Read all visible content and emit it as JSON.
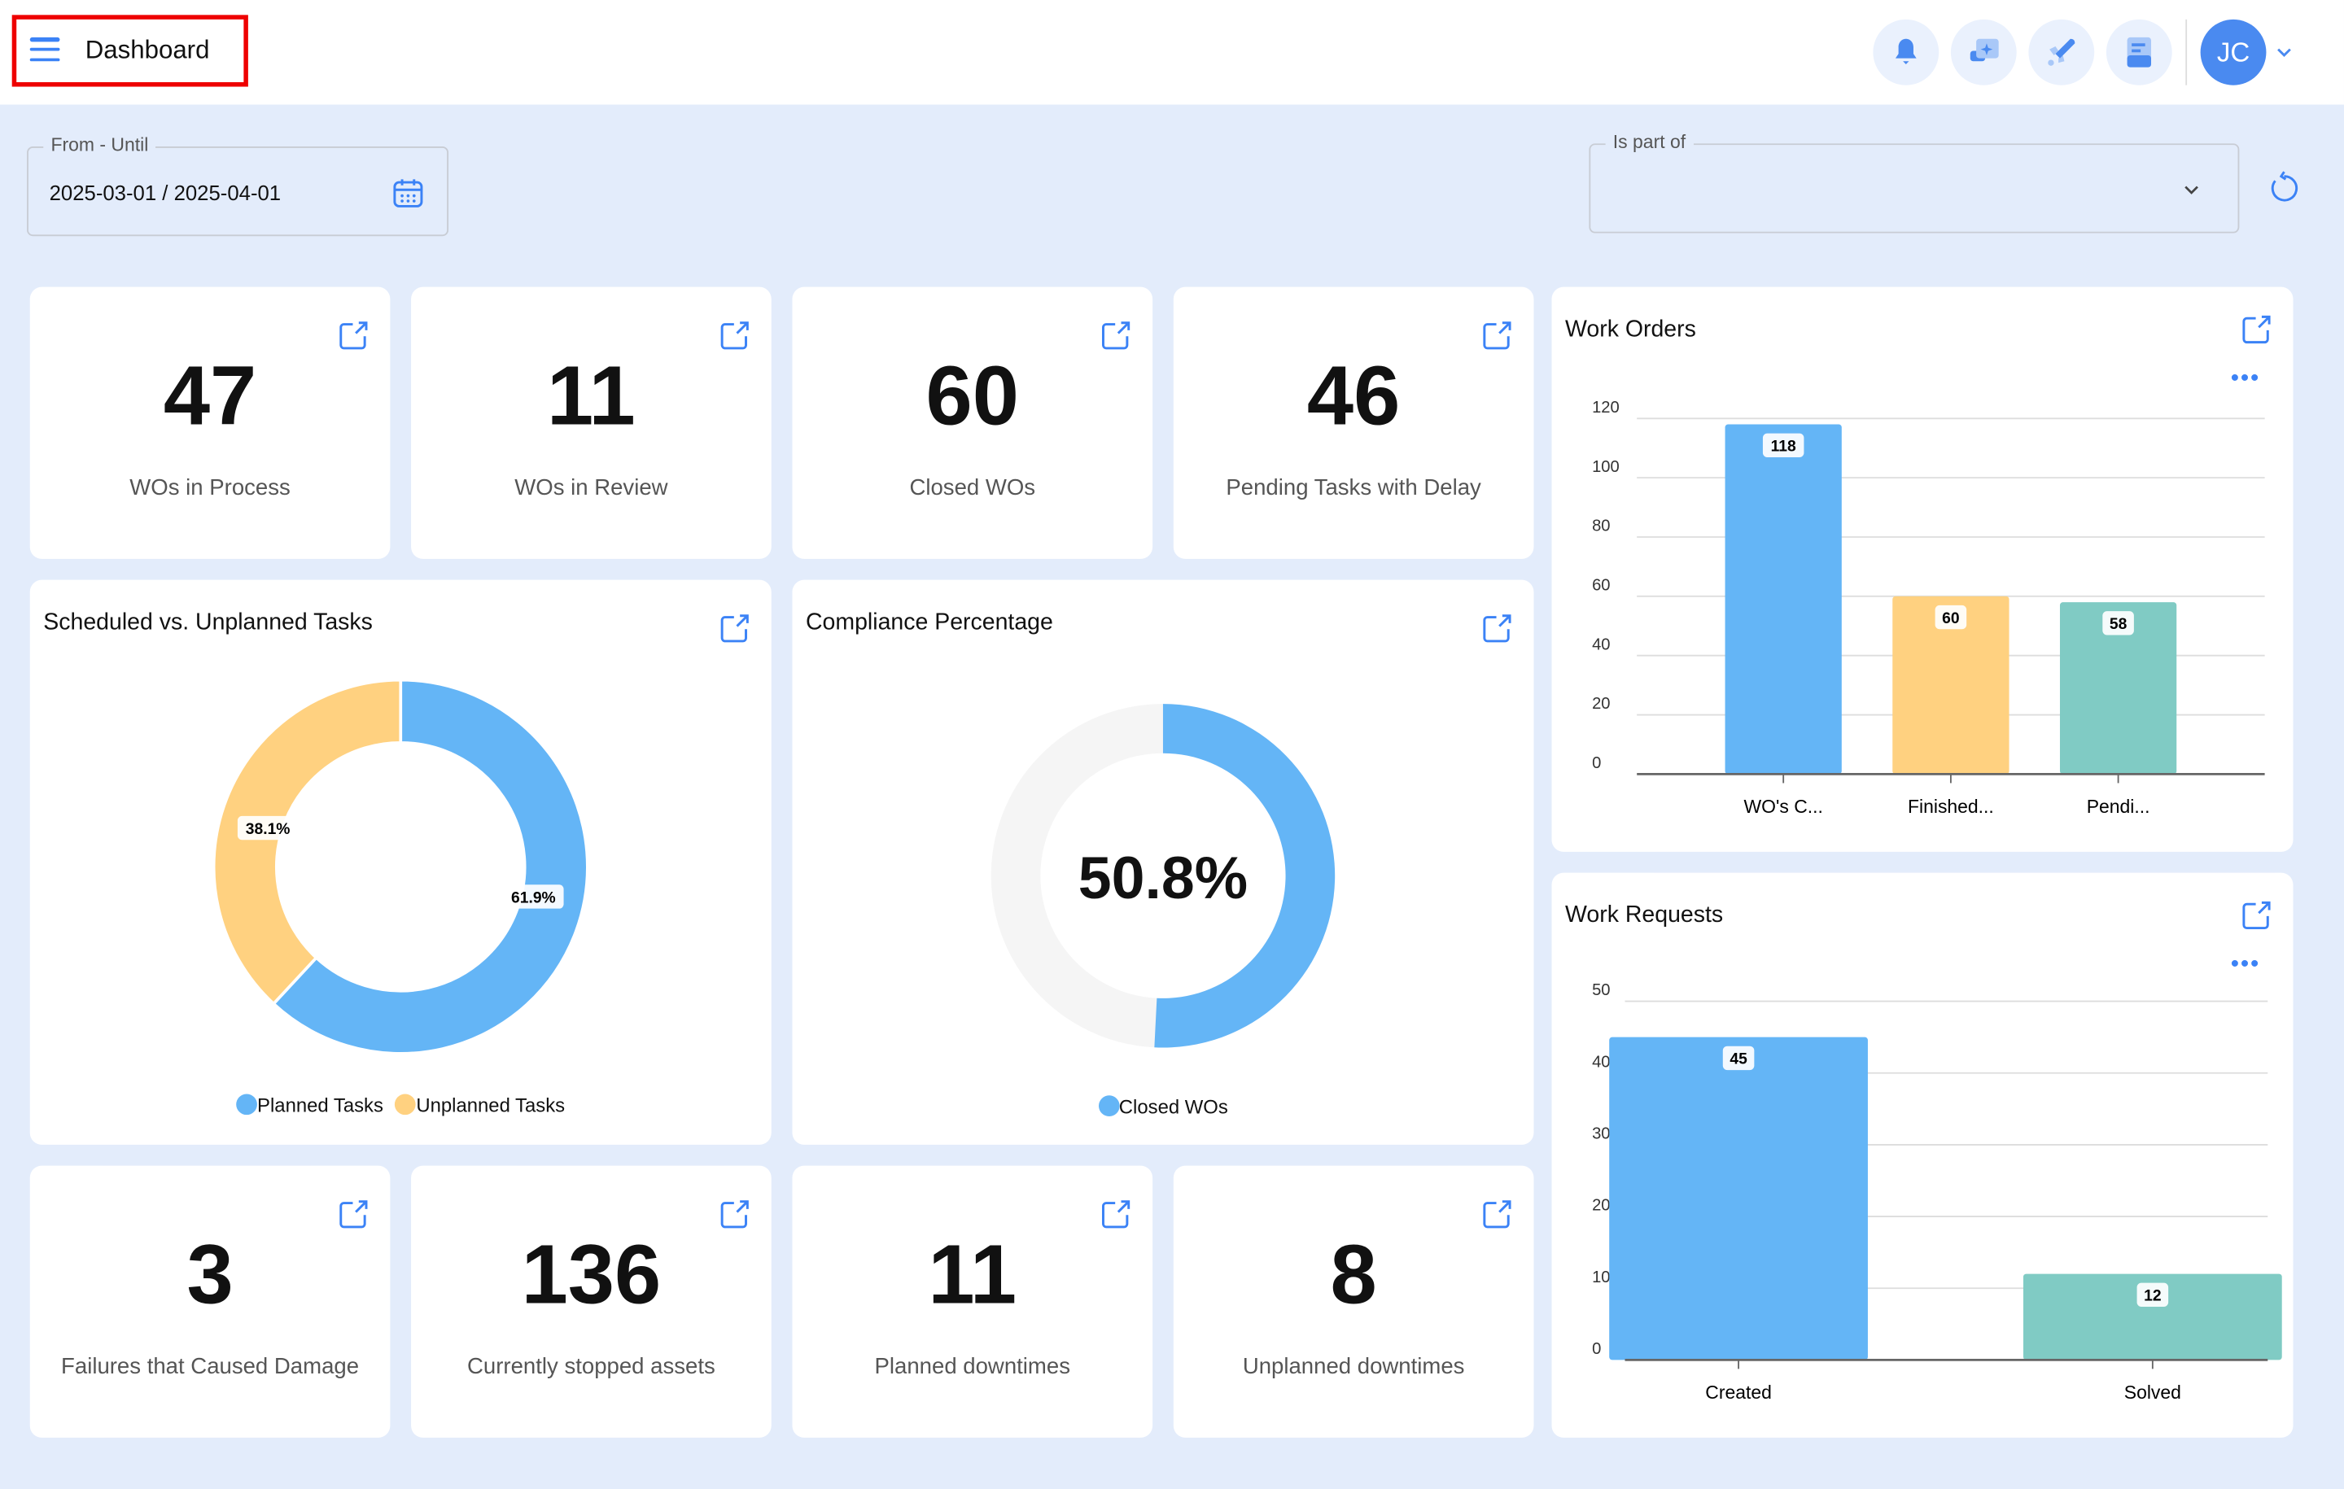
{
  "header": {
    "title": "Dashboard",
    "avatar_initials": "JC",
    "icons": [
      "bell-icon",
      "ai-chat-icon",
      "rocket-icon",
      "document-icon"
    ]
  },
  "filters": {
    "date_label": "From - Until",
    "date_value": "2025-03-01 / 2025-04-01",
    "part_of_label": "Is part of",
    "part_of_value": ""
  },
  "kpis": [
    {
      "value": "47",
      "label": "WOs in Process"
    },
    {
      "value": "11",
      "label": "WOs in Review"
    },
    {
      "value": "60",
      "label": "Closed WOs"
    },
    {
      "value": "46",
      "label": "Pending Tasks with Delay"
    },
    {
      "value": "3",
      "label": "Failures that Caused Damage"
    },
    {
      "value": "136",
      "label": "Currently stopped assets"
    },
    {
      "value": "11",
      "label": "Planned downtimes"
    },
    {
      "value": "8",
      "label": "Unplanned downtimes"
    }
  ],
  "colors": {
    "blue": "#64b5f6",
    "yellow": "#ffd180",
    "teal": "#80cbc4",
    "accent": "#3b82f6",
    "track": "#f5f5f5"
  },
  "chart_data": [
    {
      "type": "pie",
      "title": "Scheduled vs. Unplanned Tasks",
      "donut": true,
      "categories": [
        "Planned Tasks",
        "Unplanned Tasks"
      ],
      "values": [
        61.9,
        38.1
      ],
      "labels": [
        "61.9%",
        "38.1%"
      ],
      "legend": "bottom"
    },
    {
      "type": "pie",
      "title": "Compliance Percentage",
      "donut": true,
      "categories": [
        "Closed WOs"
      ],
      "values": [
        50.8
      ],
      "center_label": "50.8%",
      "legend": "bottom"
    },
    {
      "type": "bar",
      "title": "Work Orders",
      "categories": [
        "WO's C...",
        "Finished...",
        "Pendi..."
      ],
      "values": [
        118,
        60,
        58
      ],
      "ylim": [
        0,
        120
      ],
      "yticks": [
        "0",
        "20",
        "40",
        "60",
        "80",
        "100",
        "120"
      ],
      "grid": true
    },
    {
      "type": "bar",
      "title": "Work Requests",
      "categories": [
        "Created",
        "Solved"
      ],
      "values": [
        45,
        12
      ],
      "ylim": [
        0,
        50
      ],
      "yticks": [
        "0",
        "10",
        "20",
        "30",
        "40",
        "50"
      ],
      "grid": true
    }
  ]
}
